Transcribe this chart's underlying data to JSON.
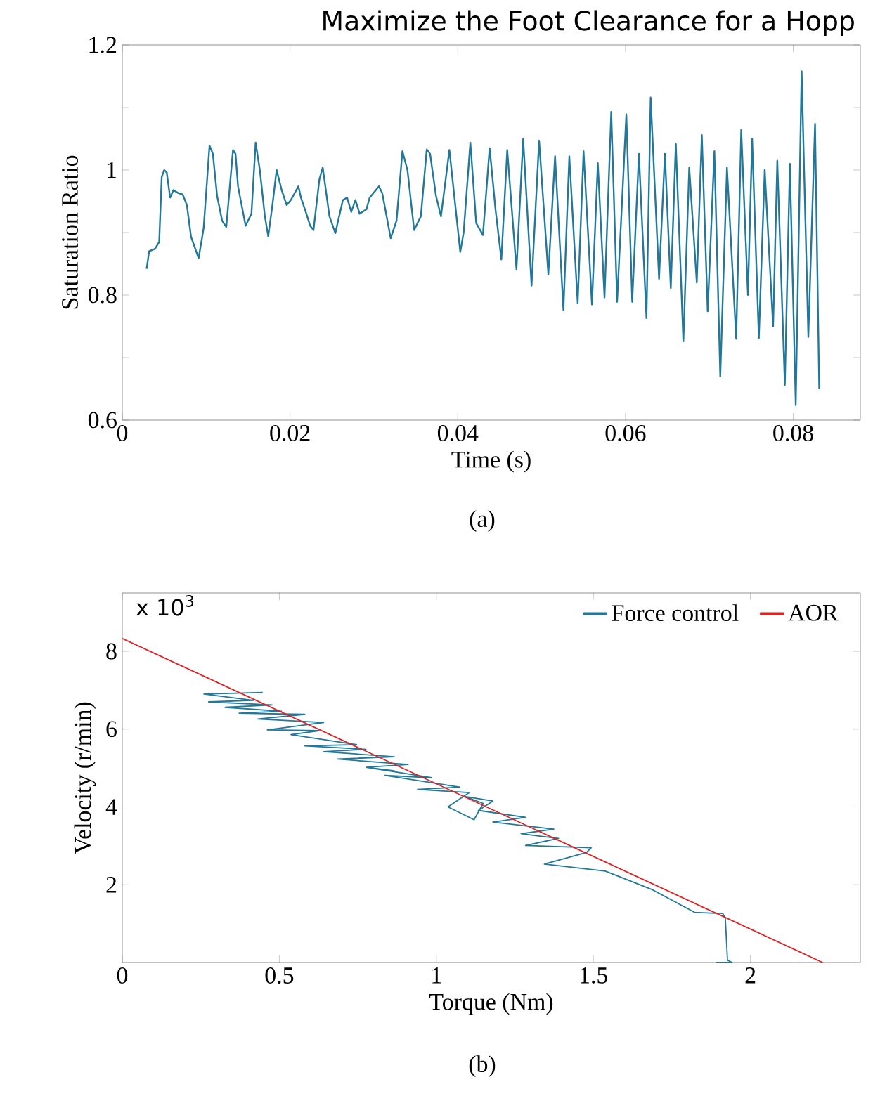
{
  "chart_data": [
    {
      "type": "line",
      "title": "Maximize the Foot Clearance for a Hopp",
      "xlabel": "Time (s)",
      "ylabel": "Saturation Ratio",
      "annotations": [
        "(a)"
      ],
      "xlim": [
        0,
        0.088
      ],
      "xticks": [
        0,
        0.02,
        0.04,
        0.06,
        0.08
      ],
      "ylim": [
        0.6,
        1.2
      ],
      "yticks": [
        0.6,
        {
          "value": 0.7,
          "label": null
        },
        0.8,
        {
          "value": 0.9,
          "label": null
        },
        1,
        {
          "value": 1.1,
          "label": null
        },
        1.2
      ],
      "series": [
        {
          "color": "#22789a",
          "x": [
            0.0029,
            0.0032,
            0.0039,
            0.0044,
            0.0047,
            0.005,
            0.0053,
            0.0057,
            0.0061,
            0.0067,
            0.0072,
            0.0077,
            0.0082,
            0.0091,
            0.0097,
            0.0104,
            0.0108,
            0.0113,
            0.0119,
            0.0124,
            0.0132,
            0.0135,
            0.0138,
            0.0147,
            0.0154,
            0.0159,
            0.0164,
            0.017,
            0.0174,
            0.0179,
            0.0184,
            0.019,
            0.0196,
            0.0201,
            0.021,
            0.0213,
            0.0218,
            0.0224,
            0.0228,
            0.0235,
            0.0239,
            0.0247,
            0.0254,
            0.0263,
            0.0268,
            0.0273,
            0.0278,
            0.0283,
            0.0291,
            0.0295,
            0.0306,
            0.031,
            0.032,
            0.0327,
            0.0334,
            0.034,
            0.0348,
            0.0356,
            0.0363,
            0.0367,
            0.0374,
            0.038,
            0.039,
            0.0403,
            0.0407,
            0.0415,
            0.0422,
            0.043,
            0.0438,
            0.0445,
            0.0452,
            0.0459,
            0.047,
            0.0478,
            0.0488,
            0.0497,
            0.0508,
            0.0516,
            0.0526,
            0.0533,
            0.0543,
            0.055,
            0.056,
            0.0567,
            0.0575,
            0.0583,
            0.059,
            0.0601,
            0.0608,
            0.0616,
            0.0625,
            0.063,
            0.064,
            0.0647,
            0.0654,
            0.066,
            0.0669,
            0.0676,
            0.0685,
            0.0691,
            0.0698,
            0.0706,
            0.0713,
            0.0721,
            0.0732,
            0.0738,
            0.0746,
            0.0751,
            0.0759,
            0.0766,
            0.0776,
            0.0781,
            0.079,
            0.0796,
            0.0803,
            0.081,
            0.0818,
            0.0826,
            0.0831
          ],
          "values": [
            0.842,
            0.87,
            0.874,
            0.885,
            0.989,
            1.0,
            0.996,
            0.956,
            0.968,
            0.963,
            0.961,
            0.944,
            0.893,
            0.859,
            0.907,
            1.039,
            1.026,
            0.959,
            0.919,
            0.909,
            1.032,
            1.026,
            0.974,
            0.911,
            0.93,
            1.044,
            1.0,
            0.926,
            0.894,
            0.944,
            1.0,
            0.968,
            0.944,
            0.952,
            0.974,
            0.956,
            0.936,
            0.911,
            0.904,
            0.985,
            1.004,
            0.926,
            0.899,
            0.952,
            0.956,
            0.933,
            0.952,
            0.93,
            0.937,
            0.956,
            0.974,
            0.963,
            0.891,
            0.919,
            1.03,
            1.0,
            0.904,
            0.926,
            1.033,
            1.026,
            0.959,
            0.926,
            1.032,
            0.869,
            0.9,
            1.044,
            0.915,
            0.896,
            1.035,
            0.937,
            0.857,
            1.032,
            0.841,
            1.05,
            0.815,
            1.047,
            0.833,
            1.022,
            0.776,
            1.022,
            0.787,
            1.03,
            0.785,
            1.011,
            0.796,
            1.093,
            0.789,
            1.089,
            0.789,
            1.026,
            0.763,
            1.116,
            0.826,
            1.026,
            0.811,
            1.042,
            0.726,
            1.004,
            0.82,
            1.056,
            0.774,
            1.03,
            0.67,
            1.004,
            0.73,
            1.064,
            0.8,
            1.05,
            0.731,
            1.0,
            0.75,
            1.015,
            0.656,
            1.01,
            0.624,
            1.158,
            0.733,
            1.074,
            0.65
          ]
        }
      ]
    },
    {
      "type": "line",
      "xlabel": "Torque (Nm)",
      "ylabel": "Velocity (r/min)",
      "annotations": [
        "x 10$^{3}$",
        "(b)"
      ],
      "legend": "top right",
      "xlim": [
        0,
        2.35
      ],
      "xticks": [
        0,
        0.5,
        1,
        1.5,
        2
      ],
      "ylim": [
        0,
        9.5
      ],
      "yticks": [
        2,
        4,
        6,
        8
      ],
      "series": [
        {
          "name": "Force control",
          "color": "#22789a",
          "x": [
            1.89,
            1.942,
            1.927,
            1.92,
            1.912,
            1.822,
            1.688,
            1.538,
            1.344,
            1.478,
            1.493,
            1.284,
            1.389,
            1.27,
            1.374,
            1.18,
            1.284,
            1.134,
            1.18,
            1.09,
            1.149,
            1.12,
            1.037,
            1.105,
            0.94,
            1.075,
            0.836,
            0.985,
            0.776,
            0.866,
            0.776,
            0.91,
            0.686,
            0.866,
            0.641,
            0.776,
            0.581,
            0.746,
            0.537,
            0.626,
            0.462,
            0.641,
            0.432,
            0.581,
            0.372,
            0.507,
            0.327,
            0.477,
            0.275,
            0.417,
            0.26,
            0.447
          ],
          "values": [
            0,
            0,
            0.06,
            1.14,
            1.26,
            1.29,
            1.87,
            2.35,
            2.53,
            2.83,
            2.95,
            3.01,
            3.19,
            3.31,
            3.43,
            3.61,
            3.73,
            3.91,
            4.15,
            4.27,
            4.09,
            3.67,
            4.0,
            4.37,
            4.45,
            4.51,
            4.81,
            4.75,
            5.02,
            4.93,
            5.02,
            5.09,
            5.23,
            5.29,
            5.42,
            5.48,
            5.57,
            5.6,
            5.86,
            5.96,
            5.98,
            6.17,
            6.26,
            6.38,
            6.41,
            6.46,
            6.56,
            6.62,
            6.7,
            6.74,
            6.9,
            6.94
          ]
        },
        {
          "name": "AOR",
          "color": "#e02020",
          "x": [
            0,
            2.23
          ],
          "values": [
            8.33,
            0
          ]
        }
      ]
    }
  ]
}
